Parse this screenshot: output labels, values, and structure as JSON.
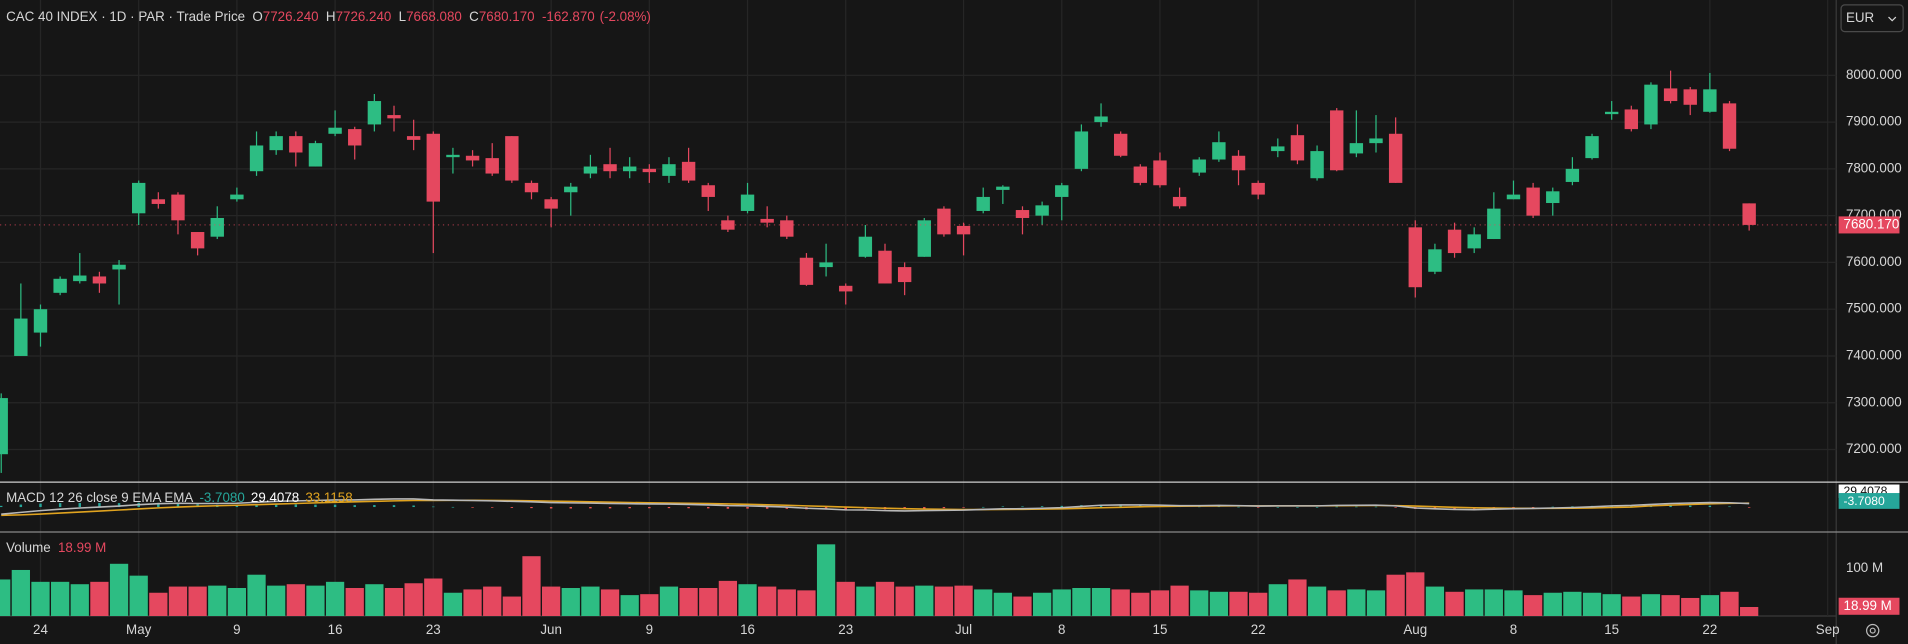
{
  "chart_data": [
    {
      "type": "candlestick",
      "title": "CAC 40 INDEX · 1D · PAR · Trade Price",
      "currency": "EUR",
      "ohlc_letters": [
        "O",
        "H",
        "L",
        "C"
      ],
      "change_label": "-162.870",
      "change_pct_label": "(-2.08%)",
      "categories": [
        null,
        null,
        "24",
        null,
        null,
        null,
        null,
        "May",
        null,
        null,
        null,
        null,
        "9",
        null,
        null,
        null,
        null,
        "16",
        null,
        null,
        null,
        null,
        "23",
        null,
        null,
        null,
        null,
        null,
        "Jun",
        null,
        null,
        null,
        null,
        "9",
        null,
        null,
        null,
        null,
        "16",
        null,
        null,
        null,
        null,
        "23",
        null,
        null,
        null,
        null,
        null,
        "Jul",
        null,
        null,
        null,
        null,
        "8",
        null,
        null,
        null,
        null,
        "15",
        null,
        null,
        null,
        null,
        "22",
        null,
        null,
        null,
        null,
        null,
        null,
        null,
        "Aug",
        null,
        null,
        null,
        null,
        "8",
        null,
        null,
        null,
        null,
        "15",
        null,
        null,
        null,
        null,
        "22",
        null,
        null,
        null,
        null,
        null,
        "Sep"
      ],
      "open": [
        7190,
        7400,
        7450,
        7535,
        7560,
        7570,
        7585,
        7705,
        7735,
        7745,
        7665,
        7655,
        7735,
        7795,
        7840,
        7870,
        7805,
        7875,
        7885,
        7895,
        7915,
        7870,
        7875,
        7825,
        7828,
        7823,
        7870,
        7770,
        7735,
        7750,
        7790,
        7810,
        7795,
        7800,
        7785,
        7815,
        7765,
        7690,
        7710,
        7693,
        7690,
        7610,
        7590,
        7550,
        7612,
        7625,
        7590,
        7612,
        7715,
        7678,
        7710,
        7755,
        7712,
        7700,
        7740,
        7800,
        7900,
        7875,
        7805,
        7818,
        7740,
        7792,
        7820,
        7828,
        7770,
        7838,
        7872,
        7780,
        7925,
        7833,
        7855,
        7875,
        7675,
        7580,
        7670,
        7630,
        7650,
        7735,
        7760,
        7727,
        7772,
        7823,
        7917,
        7927,
        7895,
        7972,
        7970,
        7922,
        7940,
        7726.24,
        null,
        null,
        null,
        null
      ],
      "high": [
        7320,
        7555,
        7510,
        7570,
        7620,
        7580,
        7605,
        7775,
        7750,
        7750,
        7665,
        7720,
        7760,
        7880,
        7880,
        7880,
        7860,
        7925,
        7890,
        7960,
        7935,
        7905,
        7880,
        7845,
        7840,
        7855,
        7870,
        7775,
        7740,
        7770,
        7830,
        7845,
        7825,
        7810,
        7825,
        7845,
        7770,
        7700,
        7770,
        7720,
        7700,
        7620,
        7640,
        7555,
        7680,
        7640,
        7600,
        7695,
        7720,
        7685,
        7760,
        7765,
        7720,
        7730,
        7770,
        7895,
        7940,
        7880,
        7810,
        7835,
        7760,
        7825,
        7880,
        7840,
        7775,
        7865,
        7895,
        7850,
        7930,
        7925,
        7915,
        7910,
        7690,
        7640,
        7685,
        7675,
        7750,
        7775,
        7770,
        7760,
        7825,
        7875,
        7945,
        7935,
        7985,
        8010,
        7975,
        8005,
        7945,
        7726.24,
        null,
        null,
        null,
        null
      ],
      "low": [
        7150,
        7400,
        7420,
        7530,
        7555,
        7535,
        7510,
        7680,
        7715,
        7660,
        7615,
        7650,
        7730,
        7785,
        7830,
        7805,
        7805,
        7870,
        7820,
        7880,
        7880,
        7840,
        7620,
        7790,
        7805,
        7785,
        7770,
        7735,
        7675,
        7700,
        7780,
        7780,
        7780,
        7770,
        7770,
        7770,
        7710,
        7665,
        7705,
        7675,
        7650,
        7550,
        7570,
        7510,
        7610,
        7555,
        7530,
        7612,
        7655,
        7615,
        7705,
        7725,
        7660,
        7680,
        7690,
        7795,
        7890,
        7825,
        7765,
        7760,
        7715,
        7785,
        7815,
        7765,
        7735,
        7825,
        7810,
        7775,
        7795,
        7825,
        7835,
        7770,
        7525,
        7575,
        7610,
        7620,
        7650,
        7735,
        7695,
        7700,
        7765,
        7820,
        7905,
        7880,
        7885,
        7940,
        7915,
        7920,
        7838,
        7668.08,
        null,
        null,
        null,
        null
      ],
      "close": [
        7310,
        7480,
        7500,
        7565,
        7572,
        7555,
        7595,
        7770,
        7725,
        7690,
        7630,
        7695,
        7745,
        7850,
        7870,
        7835,
        7855,
        7888,
        7850,
        7945,
        7908,
        7862,
        7730,
        7830,
        7818,
        7790,
        7775,
        7750,
        7715,
        7762,
        7805,
        7795,
        7805,
        7793,
        7810,
        7775,
        7740,
        7670,
        7745,
        7685,
        7655,
        7552,
        7600,
        7538,
        7655,
        7555,
        7558,
        7690,
        7660,
        7660,
        7740,
        7762,
        7695,
        7722,
        7765,
        7880,
        7912,
        7828,
        7770,
        7765,
        7720,
        7820,
        7857,
        7797,
        7745,
        7848,
        7818,
        7838,
        7797,
        7855,
        7865,
        7770,
        7547,
        7628,
        7620,
        7660,
        7715,
        7745,
        7700,
        7752,
        7800,
        7870,
        7922,
        7885,
        7980,
        7945,
        7937,
        7970,
        7843.04,
        7680.17,
        null,
        null,
        null,
        null
      ],
      "value_labels": {
        "open": {
          "89": "7726.240"
        },
        "high": {
          "89": "7726.240"
        },
        "low": {
          "89": "7668.080"
        },
        "close": {
          "89": "7680.170"
        }
      },
      "up_color": "#2dbd83",
      "down_color": "#e5485f",
      "ylim": [
        7133,
        8161
      ],
      "yticks": [
        {
          "value": 7200,
          "label": "7200.000"
        },
        {
          "value": 7300,
          "label": "7300.000"
        },
        {
          "value": 7400,
          "label": "7400.000"
        },
        {
          "value": 7500,
          "label": "7500.000"
        },
        {
          "value": 7600,
          "label": "7600.000"
        },
        {
          "value": 7700,
          "label": "7700.000"
        },
        {
          "value": 7800,
          "label": "7800.000"
        },
        {
          "value": 7900,
          "label": "7900.000"
        },
        {
          "value": 8000,
          "label": "8000.000"
        }
      ],
      "grid": true
    },
    {
      "type": "macd",
      "title": "MACD 12 26 close 9 EMA EMA",
      "histogram": {
        "values": [
          10,
          21,
          29,
          33,
          34,
          34,
          33,
          36,
          35,
          32,
          24,
          19,
          17,
          20,
          23,
          22,
          20,
          20,
          16,
          17,
          16,
          13,
          4,
          1,
          -2,
          -4,
          -7,
          -9,
          -12,
          -12,
          -11,
          -11,
          -10,
          -10,
          -9,
          -10,
          -11,
          -14,
          -13,
          -14,
          -15,
          -20,
          -21,
          -24,
          -20,
          -20,
          -19,
          -13,
          -9,
          -5,
          1,
          5,
          5,
          7,
          10,
          16,
          21,
          20,
          16,
          11,
          5,
          4,
          5,
          2,
          -2,
          0,
          0,
          0,
          3,
          3,
          3,
          -2,
          -16,
          -18,
          -18,
          -16,
          -10,
          -4,
          -1,
          3,
          6,
          10,
          14,
          14,
          12,
          14,
          12,
          11,
          5,
          -3.708,
          null,
          null,
          null,
          null
        ],
        "value_labels": {
          "89": "-3.7080"
        },
        "colors": [
          "#26a69a",
          "#ef5350"
        ]
      },
      "macd": {
        "values": [
          -60,
          -45,
          -30,
          -18,
          -8,
          0,
          8,
          20,
          28,
          32,
          30,
          30,
          32,
          40,
          48,
          52,
          55,
          60,
          60,
          65,
          68,
          68,
          60,
          58,
          55,
          52,
          48,
          44,
          38,
          35,
          33,
          30,
          28,
          26,
          25,
          22,
          18,
          12,
          10,
          5,
          0,
          -10,
          -16,
          -24,
          -25,
          -30,
          -33,
          -30,
          -28,
          -26,
          -20,
          -15,
          -14,
          -10,
          -5,
          5,
          15,
          18,
          18,
          16,
          12,
          12,
          14,
          12,
          8,
          10,
          10,
          10,
          14,
          15,
          16,
          10,
          -8,
          -15,
          -20,
          -22,
          -18,
          -14,
          -12,
          -8,
          -4,
          2,
          10,
          14,
          22,
          30,
          34,
          38,
          36,
          29.4078,
          null,
          null,
          null,
          null
        ],
        "value_labels": {
          "89": "29.4078"
        },
        "color": "#b8b8b8"
      },
      "signal": {
        "values": [
          -70,
          -66,
          -59,
          -51,
          -42,
          -34,
          -25,
          -16,
          -7,
          0,
          6,
          11,
          15,
          20,
          25,
          30,
          35,
          40,
          44,
          48,
          52,
          55,
          56,
          57,
          57,
          56,
          55,
          53,
          50,
          47,
          44,
          41,
          38,
          36,
          34,
          32,
          29,
          26,
          23,
          19,
          15,
          10,
          5,
          0,
          -5,
          -10,
          -14,
          -17,
          -19,
          -21,
          -21,
          -20,
          -19,
          -17,
          -15,
          -11,
          -6,
          -2,
          2,
          5,
          7,
          8,
          9,
          10,
          10,
          10,
          10,
          10,
          11,
          12,
          13,
          12,
          8,
          3,
          -2,
          -6,
          -8,
          -10,
          -11,
          -11,
          -10,
          -8,
          -4,
          0,
          10,
          16,
          22,
          27,
          31,
          33.1158,
          null,
          null,
          null,
          null
        ],
        "value_labels": {
          "89": "33.1158"
        },
        "color": "#e0a31f"
      },
      "ylim": [
        -200,
        200
      ]
    },
    {
      "type": "volume",
      "title": "Volume",
      "values": [
        77,
        97,
        72,
        72,
        67,
        72,
        110,
        85,
        49,
        62,
        62,
        64,
        59,
        87,
        64,
        67,
        64,
        72,
        59,
        67,
        59,
        69,
        79,
        49,
        56,
        62,
        41,
        126,
        62,
        59,
        62,
        56,
        44,
        46,
        62,
        59,
        59,
        74,
        67,
        62,
        56,
        54,
        151,
        72,
        62,
        72,
        62,
        64,
        62,
        64,
        56,
        49,
        41,
        49,
        56,
        59,
        59,
        56,
        49,
        54,
        64,
        54,
        51,
        51,
        49,
        67,
        77,
        62,
        54,
        56,
        54,
        87,
        92,
        62,
        51,
        56,
        56,
        54,
        44,
        49,
        51,
        49,
        46,
        41,
        46,
        44,
        38,
        44,
        51,
        18.99,
        null,
        null,
        null,
        null
      ],
      "value_labels": {
        "89": "18.99 M"
      },
      "ylim": [
        0,
        177
      ],
      "yticks": [
        {
          "value": 100,
          "label": "100 M"
        }
      ]
    }
  ]
}
